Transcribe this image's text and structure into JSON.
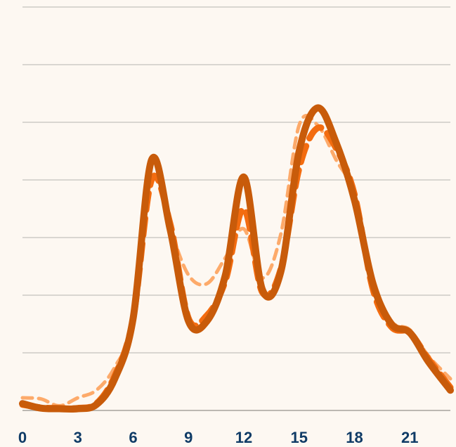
{
  "chart_data": {
    "type": "line",
    "title": "",
    "xlabel": "",
    "ylabel": "",
    "xlim": [
      0,
      23.2
    ],
    "ylim": [
      0,
      7
    ],
    "x_ticks": [
      "0",
      "3",
      "6",
      "9",
      "12",
      "15",
      "18",
      "21"
    ],
    "x_tick_values": [
      0,
      3,
      6,
      9,
      12,
      15,
      18,
      21
    ],
    "y_gridlines": [
      0,
      1,
      2,
      3,
      4,
      5,
      6,
      7
    ],
    "grid": true,
    "legend": "none",
    "series": [
      {
        "color": "#fdaa6a",
        "style": "dashed-thin",
        "x": [
          0,
          1,
          2,
          3,
          4,
          5,
          6,
          7,
          8,
          9,
          10,
          11,
          12,
          13,
          14,
          15,
          16,
          17,
          18,
          19,
          20,
          21,
          22,
          23.2
        ],
        "y": [
          0.22,
          0.2,
          0.08,
          0.22,
          0.35,
          0.75,
          1.55,
          4.05,
          3.15,
          2.35,
          2.2,
          2.65,
          3.15,
          2.3,
          3.05,
          4.95,
          4.95,
          4.35,
          3.75,
          2.3,
          1.55,
          1.4,
          0.95,
          0.55
        ]
      },
      {
        "color": "#f36c10",
        "style": "dashed-thick",
        "x": [
          0,
          1,
          2,
          3,
          4,
          5,
          6,
          7,
          8,
          9,
          10,
          11,
          12,
          13,
          14,
          15,
          16,
          17,
          18,
          19,
          20,
          21,
          22,
          23.2
        ],
        "y": [
          0.1,
          0.05,
          0.04,
          0.04,
          0.12,
          0.6,
          1.6,
          4.0,
          3.25,
          1.6,
          1.65,
          2.25,
          3.5,
          2.05,
          2.45,
          4.2,
          4.9,
          4.55,
          3.75,
          2.1,
          1.45,
          1.35,
          0.9,
          0.4
        ]
      },
      {
        "color": "#c85b0a",
        "style": "solid-thick",
        "x": [
          0,
          1,
          2,
          3,
          4,
          5,
          6,
          7,
          8,
          9,
          10,
          11,
          12,
          13,
          14,
          15,
          16,
          17,
          18,
          19,
          20,
          21,
          22,
          23.2
        ],
        "y": [
          0.12,
          0.04,
          0.03,
          0.03,
          0.1,
          0.55,
          1.6,
          4.35,
          3.15,
          1.55,
          1.55,
          2.35,
          4.05,
          2.1,
          2.4,
          4.5,
          5.25,
          4.65,
          3.65,
          2.2,
          1.5,
          1.35,
          0.85,
          0.35
        ]
      }
    ]
  }
}
